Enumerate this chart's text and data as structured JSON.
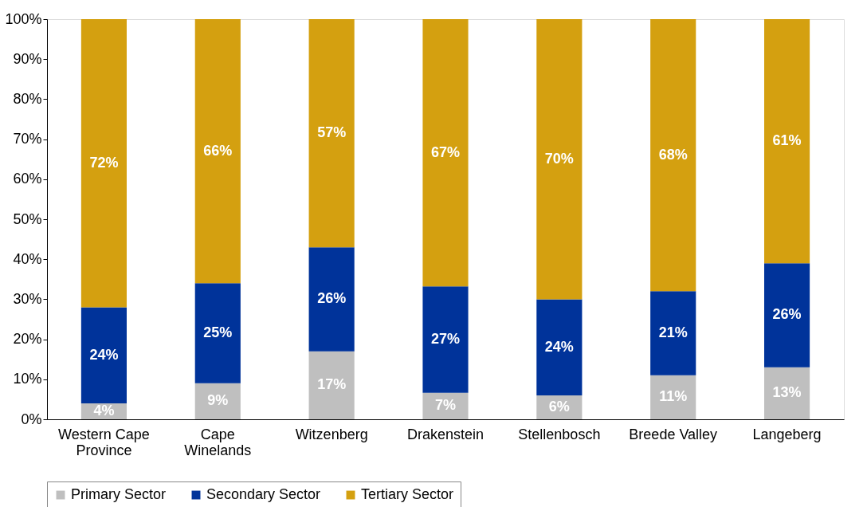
{
  "chart_data": {
    "type": "bar",
    "stacked": true,
    "categories": [
      "Western Cape Province",
      "Cape Winelands",
      "Witzenberg",
      "Drakenstein",
      "Stellenbosch",
      "Breede Valley",
      "Langeberg"
    ],
    "series": [
      {
        "name": "Primary Sector",
        "color": "#bfbfbf",
        "values": [
          4,
          9,
          17,
          6.6,
          6,
          11,
          13
        ],
        "value_labels": [
          "4%",
          "9%",
          "17%",
          "7%",
          "6%",
          "11%",
          "13%"
        ]
      },
      {
        "name": "Secondary Sector",
        "color": "#00339a",
        "values": [
          24,
          25,
          26,
          26.6,
          24,
          21,
          26
        ],
        "value_labels": [
          "24%",
          "25%",
          "26%",
          "27%",
          "24%",
          "21%",
          "26%"
        ]
      },
      {
        "name": "Tertiary Sector",
        "color": "#d4a010",
        "values": [
          72,
          66,
          57,
          66.8,
          70,
          68,
          61
        ],
        "value_labels": [
          "72%",
          "66%",
          "57%",
          "67%",
          "70%",
          "68%",
          "61%"
        ]
      }
    ],
    "ylim": [
      0,
      100
    ],
    "yticks": [
      {
        "value": 0,
        "label": "0%"
      },
      {
        "value": 10,
        "label": "10%"
      },
      {
        "value": 20,
        "label": "20%"
      },
      {
        "value": 30,
        "label": "30%"
      },
      {
        "value": 40,
        "label": "40%"
      },
      {
        "value": 50,
        "label": "50%"
      },
      {
        "value": 60,
        "label": "60%"
      },
      {
        "value": 70,
        "label": "70%"
      },
      {
        "value": 80,
        "label": "80%"
      },
      {
        "value": 90,
        "label": "90%"
      },
      {
        "value": 100,
        "label": "100%"
      }
    ],
    "grid": false,
    "legend": "bottom"
  }
}
